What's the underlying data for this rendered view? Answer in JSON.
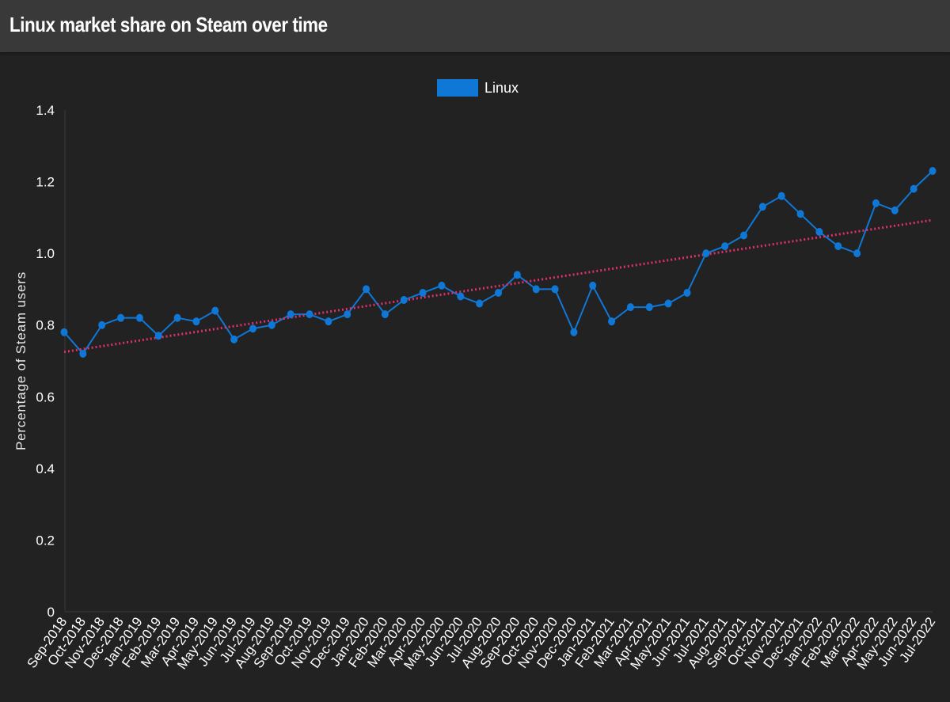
{
  "header": {
    "title": "Linux market share on Steam over time"
  },
  "colors": {
    "background": "#222222",
    "header_background": "#393939",
    "series_color": "#0f78d7",
    "trendline_color": "#e0306a",
    "text": "#ffffff"
  },
  "chart_data": {
    "type": "line",
    "title": "",
    "xlabel": "",
    "ylabel": "Percentage of Steam users",
    "ylim": [
      0,
      1.4
    ],
    "yticks": [
      "0",
      "0.2",
      "0.4",
      "0.6",
      "0.8",
      "1.0",
      "1.2",
      "1.4"
    ],
    "grid": false,
    "legend_position": "top-center",
    "categories": [
      "Sep-2018",
      "Oct-2018",
      "Nov-2018",
      "Dec-2018",
      "Jan-2019",
      "Feb-2019",
      "Mar-2019",
      "Apr-2019",
      "May-2019",
      "Jun-2019",
      "Jul-2019",
      "Aug-2019",
      "Sep-2019",
      "Oct-2019",
      "Nov-2019",
      "Dec-2019",
      "Jan-2020",
      "Feb-2020",
      "Mar-2020",
      "Apr-2020",
      "May-2020",
      "Jun-2020",
      "Jul-2020",
      "Aug-2020",
      "Sep-2020",
      "Oct-2020",
      "Nov-2020",
      "Dec-2020",
      "Jan-2021",
      "Feb-2021",
      "Mar-2021",
      "Apr-2021",
      "May-2021",
      "Jun-2021",
      "Jul-2021",
      "Aug-2021",
      "Sep-2021",
      "Oct-2021",
      "Nov-2021",
      "Dec-2021",
      "Jan-2022",
      "Feb-2022",
      "Mar-2022",
      "Apr-2022",
      "May-2022",
      "Jun-2022",
      "Jul-2022"
    ],
    "series": [
      {
        "name": "Linux",
        "values": [
          0.78,
          0.72,
          0.8,
          0.82,
          0.82,
          0.77,
          0.82,
          0.81,
          0.84,
          0.76,
          0.79,
          0.8,
          0.83,
          0.83,
          0.81,
          0.83,
          0.9,
          0.83,
          0.87,
          0.89,
          0.91,
          0.88,
          0.86,
          0.89,
          0.94,
          0.9,
          0.9,
          0.78,
          0.91,
          0.81,
          0.85,
          0.85,
          0.86,
          0.89,
          1.0,
          1.02,
          1.05,
          1.13,
          1.16,
          1.11,
          1.06,
          1.02,
          1.0,
          1.14,
          1.12,
          1.18,
          1.23
        ]
      }
    ],
    "trendline": {
      "style": "dotted",
      "start": 0.725,
      "end": 1.093
    }
  }
}
